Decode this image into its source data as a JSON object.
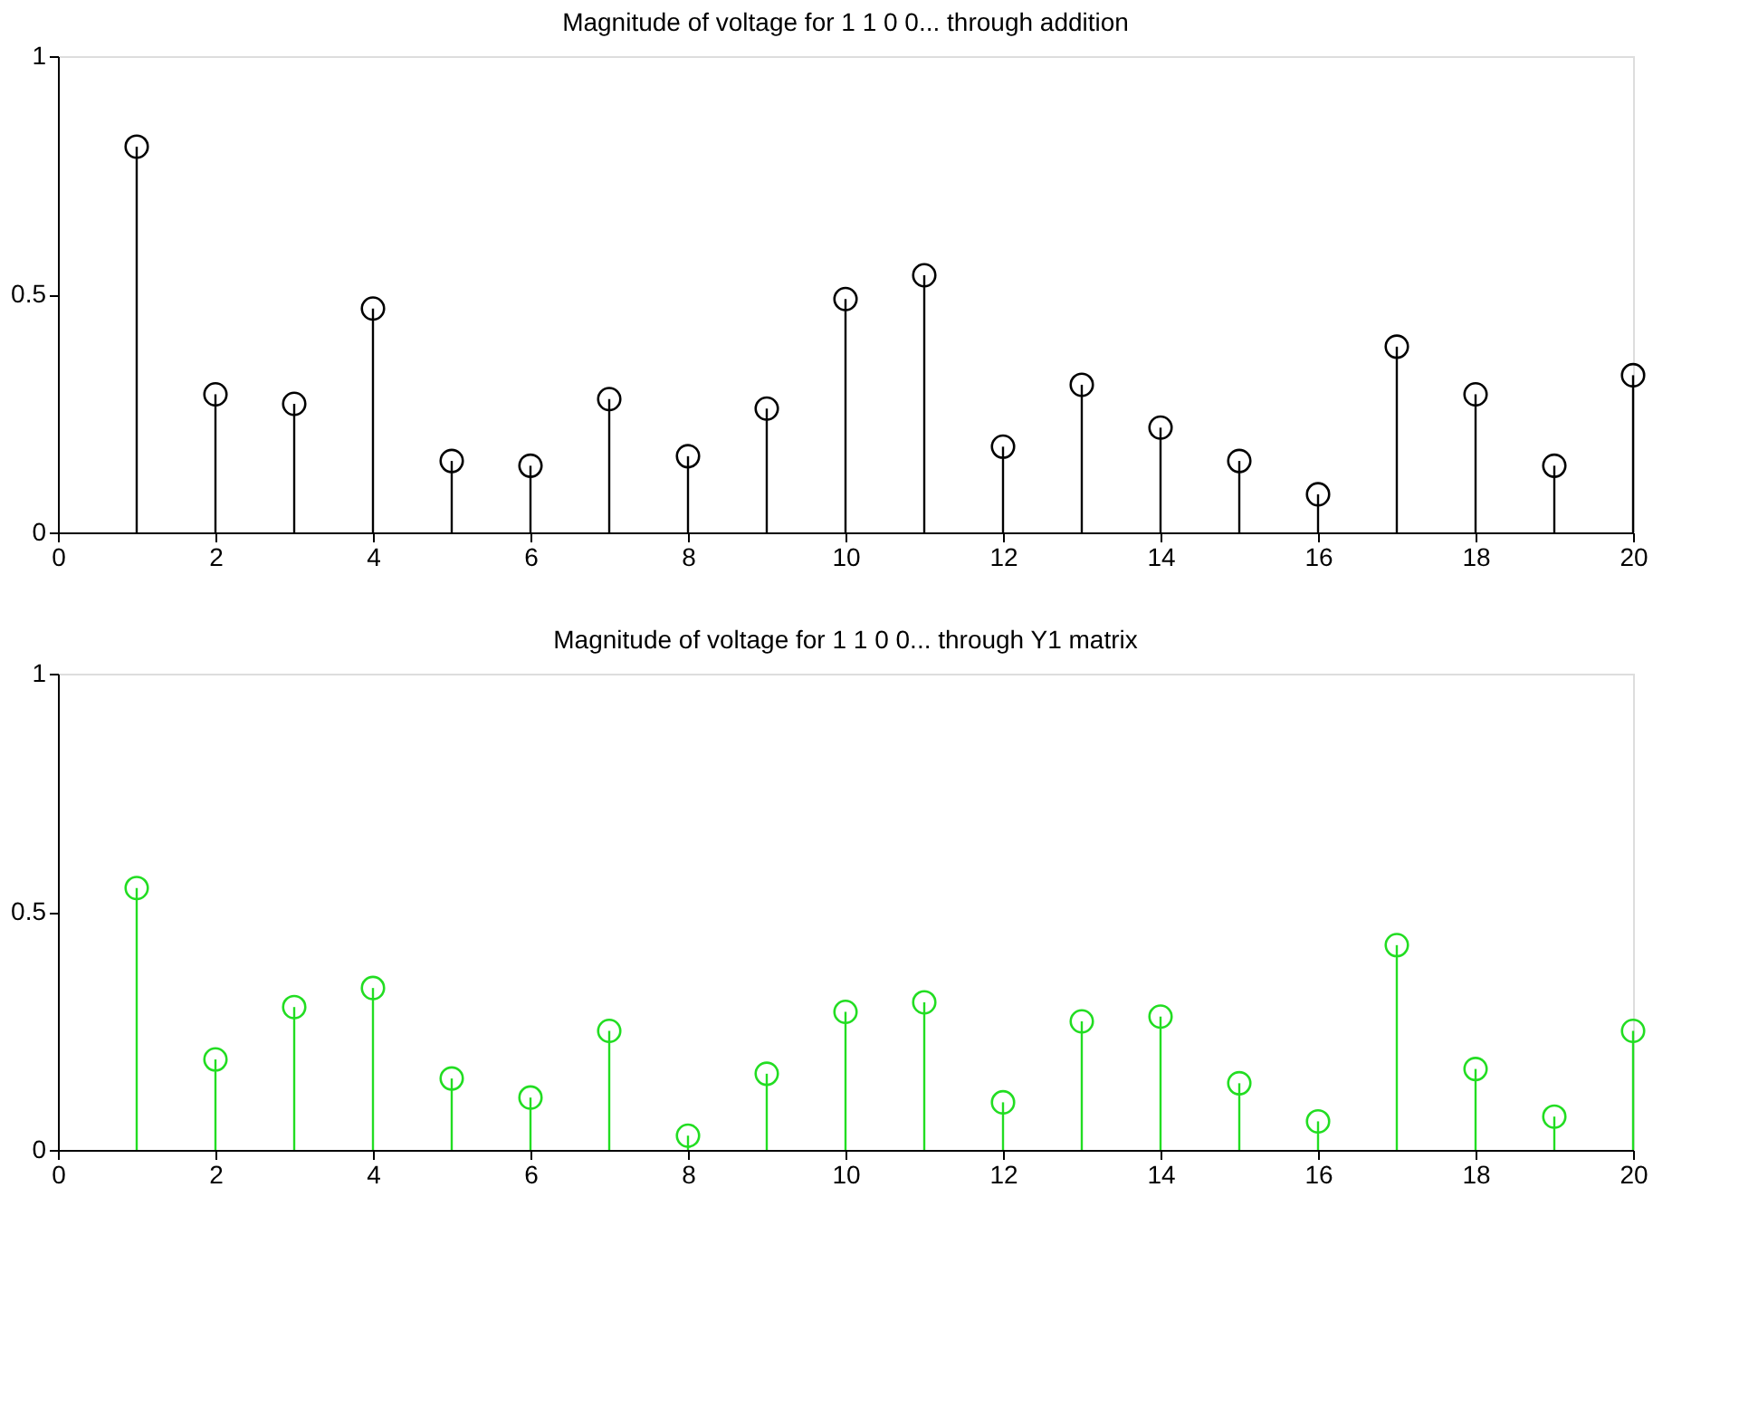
{
  "chart_data": [
    {
      "type": "lollipop",
      "title": "Magnitude of voltage for 1 1 0 0... through addition",
      "x": [
        1,
        2,
        3,
        4,
        5,
        6,
        7,
        8,
        9,
        10,
        11,
        12,
        13,
        14,
        15,
        16,
        17,
        18,
        19,
        20
      ],
      "series": [
        {
          "color": "#000000",
          "values": [
            0.81,
            0.29,
            0.27,
            0.47,
            0.15,
            0.14,
            0.28,
            0.16,
            0.26,
            0.49,
            0.54,
            0.18,
            0.31,
            0.22,
            0.15,
            0.08,
            0.39,
            0.29,
            0.14,
            0.33
          ]
        }
      ],
      "xlim": [
        0,
        20
      ],
      "xticks": [
        0,
        2,
        4,
        6,
        8,
        10,
        12,
        14,
        16,
        18,
        20
      ],
      "ylim": [
        0,
        1
      ],
      "yticks": [
        0,
        0.5,
        1
      ],
      "grid": false,
      "legend": false,
      "marker": "circle"
    },
    {
      "type": "lollipop",
      "title": "Magnitude of voltage for 1 1 0 0... through Y1 matrix",
      "x": [
        1,
        2,
        3,
        4,
        5,
        6,
        7,
        8,
        9,
        10,
        11,
        12,
        13,
        14,
        15,
        16,
        17,
        18,
        19,
        20
      ],
      "series": [
        {
          "color": "#22dd22",
          "values": [
            0.55,
            0.19,
            0.3,
            0.34,
            0.15,
            0.11,
            0.25,
            0.03,
            0.16,
            0.29,
            0.31,
            0.1,
            0.27,
            0.28,
            0.14,
            0.06,
            0.43,
            0.17,
            0.07,
            0.25
          ]
        }
      ],
      "xlim": [
        0,
        20
      ],
      "xticks": [
        0,
        2,
        4,
        6,
        8,
        10,
        12,
        14,
        16,
        18,
        20
      ],
      "ylim": [
        0,
        1
      ],
      "yticks": [
        0,
        0.5,
        1
      ],
      "grid": false,
      "legend": false,
      "marker": "circle"
    }
  ]
}
